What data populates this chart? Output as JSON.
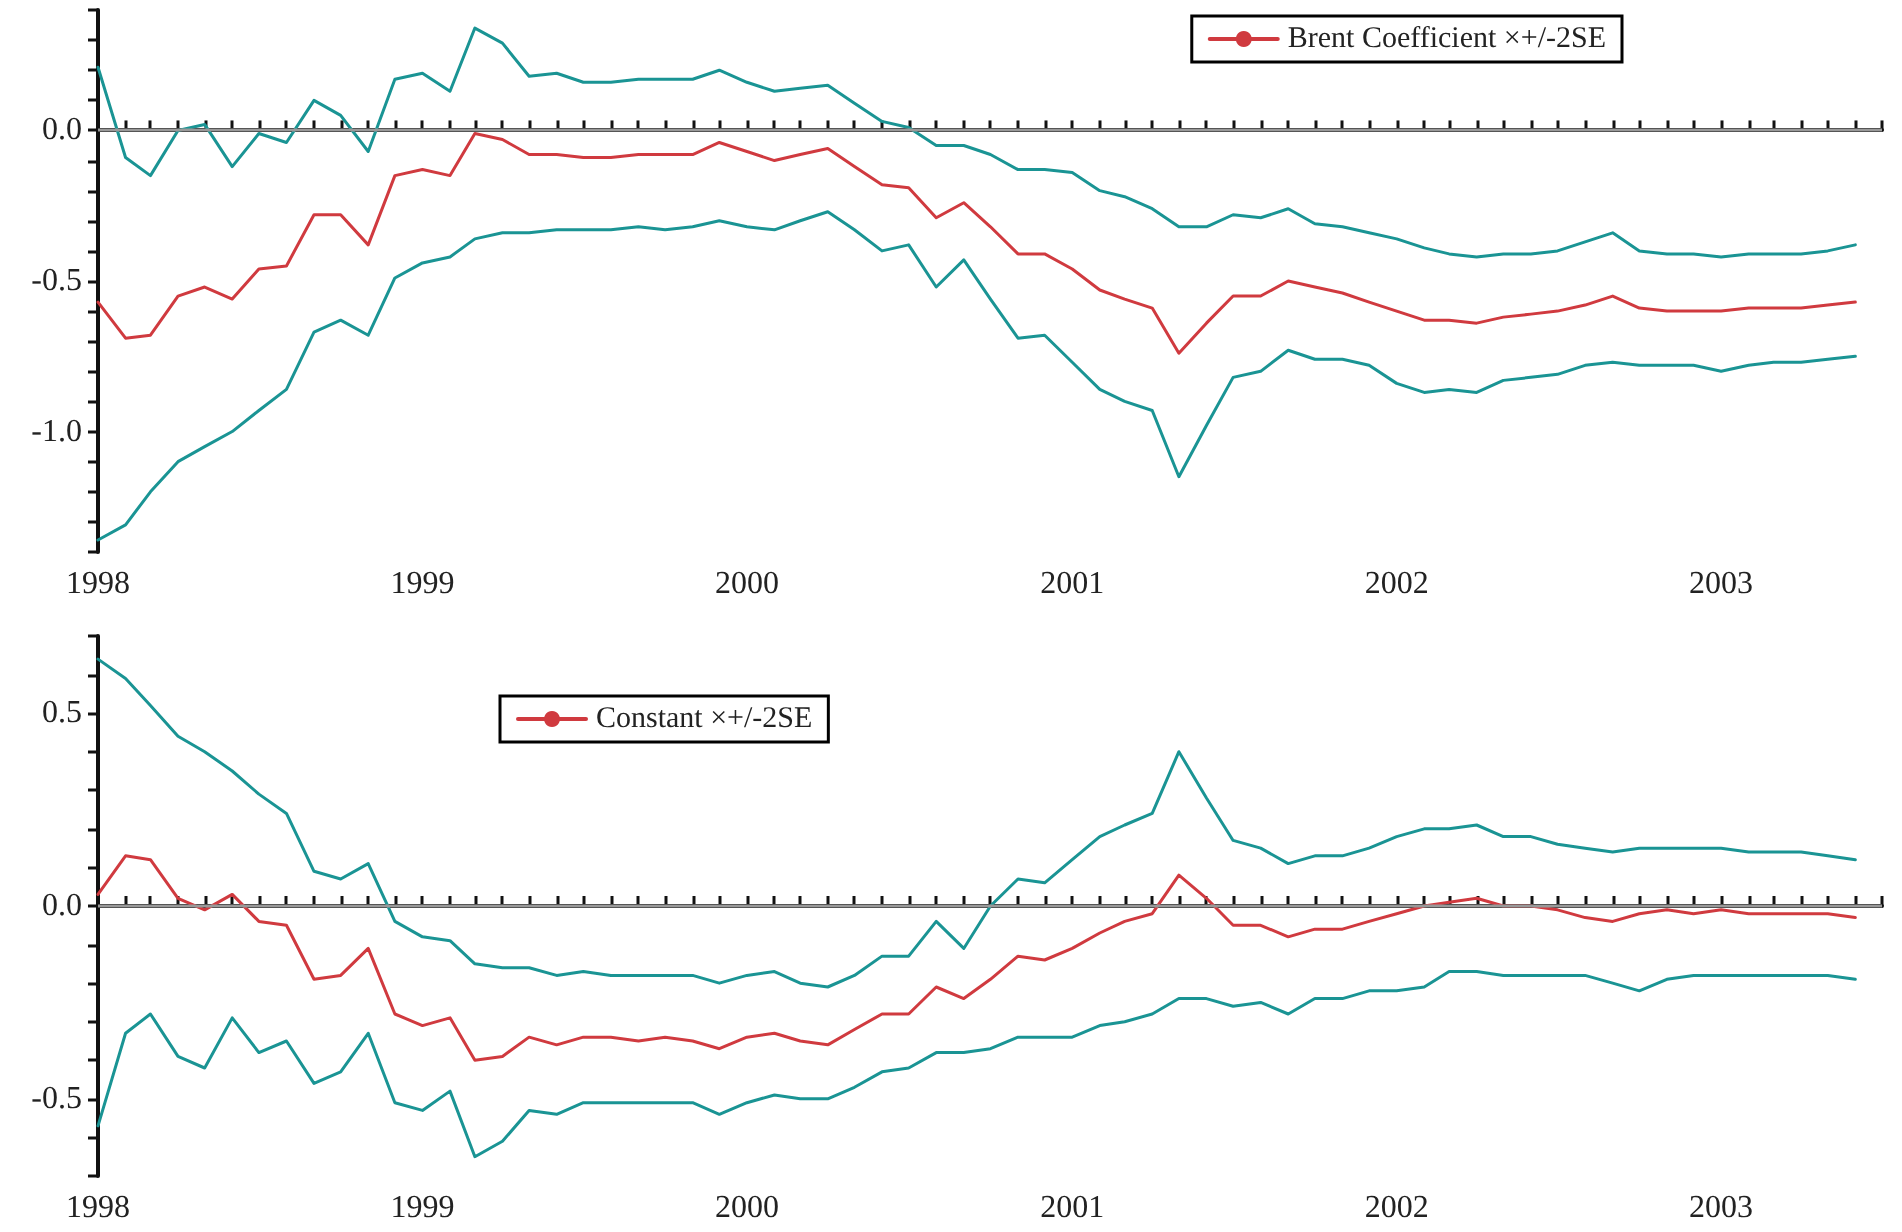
{
  "chart_data": [
    {
      "type": "line",
      "x": [
        "1998-01",
        "1998-02",
        "1998-03",
        "1998-04",
        "1998-05",
        "1998-06",
        "1998-07",
        "1998-08",
        "1998-09",
        "1998-10",
        "1998-11",
        "1998-12",
        "1999-01",
        "1999-02",
        "1999-03",
        "1999-04",
        "1999-05",
        "1999-06",
        "1999-07",
        "1999-08",
        "1999-09",
        "1999-10",
        "1999-11",
        "1999-12",
        "2000-01",
        "2000-02",
        "2000-03",
        "2000-04",
        "2000-05",
        "2000-06",
        "2000-07",
        "2000-08",
        "2000-09",
        "2000-10",
        "2000-11",
        "2000-12",
        "2001-01",
        "2001-02",
        "2001-03",
        "2001-04",
        "2001-05",
        "2001-06",
        "2001-07",
        "2001-08",
        "2001-09",
        "2001-10",
        "2001-11",
        "2001-12",
        "2002-01",
        "2002-02",
        "2002-03",
        "2002-04",
        "2002-05",
        "2002-06",
        "2002-07",
        "2002-08",
        "2002-09",
        "2002-10",
        "2002-11",
        "2002-12",
        "2003-01",
        "2003-02",
        "2003-03",
        "2003-04",
        "2003-05",
        "2003-06"
      ],
      "series": [
        {
          "name": "Brent Coefficient ×+/-2SE",
          "color": "#d03a3f",
          "values": [
            -0.57,
            -0.69,
            -0.68,
            -0.55,
            -0.52,
            -0.56,
            -0.46,
            -0.45,
            -0.28,
            -0.28,
            -0.38,
            -0.15,
            -0.13,
            -0.15,
            -0.01,
            -0.03,
            -0.08,
            -0.08,
            -0.09,
            -0.09,
            -0.08,
            -0.08,
            -0.08,
            -0.04,
            -0.07,
            -0.1,
            -0.08,
            -0.06,
            -0.12,
            -0.18,
            -0.19,
            -0.29,
            -0.24,
            -0.32,
            -0.41,
            -0.41,
            -0.46,
            -0.53,
            -0.56,
            -0.59,
            -0.74,
            -0.64,
            -0.55,
            -0.55,
            -0.5,
            -0.52,
            -0.54,
            -0.57,
            -0.6,
            -0.63,
            -0.63,
            -0.64,
            -0.62,
            -0.61,
            -0.6,
            -0.58,
            -0.55,
            -0.59,
            -0.6,
            -0.6,
            -0.6,
            -0.59,
            -0.59,
            -0.59,
            -0.58,
            -0.57
          ]
        },
        {
          "color": "#1a9494",
          "values": [
            0.21,
            -0.09,
            -0.15,
            0.0,
            0.02,
            -0.12,
            -0.01,
            -0.04,
            0.1,
            0.05,
            -0.07,
            0.17,
            0.19,
            0.13,
            0.34,
            0.29,
            0.18,
            0.19,
            0.16,
            0.16,
            0.17,
            0.17,
            0.17,
            0.2,
            0.16,
            0.13,
            0.14,
            0.15,
            0.09,
            0.03,
            0.01,
            -0.05,
            -0.05,
            -0.08,
            -0.13,
            -0.13,
            -0.14,
            -0.2,
            -0.22,
            -0.26,
            -0.32,
            -0.32,
            -0.28,
            -0.29,
            -0.26,
            -0.31,
            -0.32,
            -0.34,
            -0.36,
            -0.39,
            -0.41,
            -0.42,
            -0.41,
            -0.41,
            -0.4,
            -0.37,
            -0.34,
            -0.4,
            -0.41,
            -0.41,
            -0.42,
            -0.41,
            -0.41,
            -0.41,
            -0.4,
            -0.38
          ]
        },
        {
          "color": "#1a9494",
          "values": [
            -1.36,
            -1.31,
            -1.2,
            -1.1,
            -1.05,
            -1.0,
            -0.93,
            -0.86,
            -0.67,
            -0.63,
            -0.68,
            -0.49,
            -0.44,
            -0.42,
            -0.36,
            -0.34,
            -0.34,
            -0.33,
            -0.33,
            -0.33,
            -0.32,
            -0.33,
            -0.32,
            -0.3,
            -0.32,
            -0.33,
            -0.3,
            -0.27,
            -0.33,
            -0.4,
            -0.38,
            -0.52,
            -0.43,
            -0.56,
            -0.69,
            -0.68,
            -0.77,
            -0.86,
            -0.9,
            -0.93,
            -1.15,
            -0.98,
            -0.82,
            -0.8,
            -0.73,
            -0.76,
            -0.76,
            -0.78,
            -0.84,
            -0.87,
            -0.86,
            -0.87,
            -0.83,
            -0.82,
            -0.81,
            -0.78,
            -0.77,
            -0.78,
            -0.78,
            -0.78,
            -0.8,
            -0.78,
            -0.77,
            -0.77,
            -0.76,
            -0.75
          ]
        }
      ],
      "xlim": [
        "1998-01",
        "2003-07"
      ],
      "xticks": [
        "1998",
        "1999",
        "2000",
        "2001",
        "2002",
        "2003"
      ],
      "ylim": [
        -1.4,
        0.4
      ],
      "yticks": [
        {
          "value": -1,
          "label": "-1.0"
        },
        {
          "value": -0.5,
          "label": "-0.5"
        },
        {
          "value": 0,
          "label": "0.0"
        }
      ],
      "ref_lines": [
        {
          "axis": "y",
          "value": 0,
          "color": "#999999"
        }
      ],
      "legend": "top right",
      "grid": false,
      "marker": "none",
      "line_style": "solid"
    },
    {
      "type": "line",
      "x": [
        "1998-01",
        "1998-02",
        "1998-03",
        "1998-04",
        "1998-05",
        "1998-06",
        "1998-07",
        "1998-08",
        "1998-09",
        "1998-10",
        "1998-11",
        "1998-12",
        "1999-01",
        "1999-02",
        "1999-03",
        "1999-04",
        "1999-05",
        "1999-06",
        "1999-07",
        "1999-08",
        "1999-09",
        "1999-10",
        "1999-11",
        "1999-12",
        "2000-01",
        "2000-02",
        "2000-03",
        "2000-04",
        "2000-05",
        "2000-06",
        "2000-07",
        "2000-08",
        "2000-09",
        "2000-10",
        "2000-11",
        "2000-12",
        "2001-01",
        "2001-02",
        "2001-03",
        "2001-04",
        "2001-05",
        "2001-06",
        "2001-07",
        "2001-08",
        "2001-09",
        "2001-10",
        "2001-11",
        "2001-12",
        "2002-01",
        "2002-02",
        "2002-03",
        "2002-04",
        "2002-05",
        "2002-06",
        "2002-07",
        "2002-08",
        "2002-09",
        "2002-10",
        "2002-11",
        "2002-12",
        "2003-01",
        "2003-02",
        "2003-03",
        "2003-04",
        "2003-05",
        "2003-06"
      ],
      "series": [
        {
          "name": "Constant ×+/-2SE",
          "color": "#d03a3f",
          "values": [
            0.03,
            0.13,
            0.12,
            0.02,
            -0.01,
            0.03,
            -0.04,
            -0.05,
            -0.19,
            -0.18,
            -0.11,
            -0.28,
            -0.31,
            -0.29,
            -0.4,
            -0.39,
            -0.34,
            -0.36,
            -0.34,
            -0.34,
            -0.35,
            -0.34,
            -0.35,
            -0.37,
            -0.34,
            -0.33,
            -0.35,
            -0.36,
            -0.32,
            -0.28,
            -0.28,
            -0.21,
            -0.24,
            -0.19,
            -0.13,
            -0.14,
            -0.11,
            -0.07,
            -0.04,
            -0.02,
            0.08,
            0.02,
            -0.05,
            -0.05,
            -0.08,
            -0.06,
            -0.06,
            -0.04,
            -0.02,
            0.0,
            0.01,
            0.02,
            0.0,
            0.0,
            -0.01,
            -0.03,
            -0.04,
            -0.02,
            -0.01,
            -0.02,
            -0.01,
            -0.02,
            -0.02,
            -0.02,
            -0.02,
            -0.03
          ]
        },
        {
          "color": "#1a9494",
          "values": [
            0.64,
            0.59,
            0.52,
            0.44,
            0.4,
            0.35,
            0.29,
            0.24,
            0.09,
            0.07,
            0.11,
            -0.04,
            -0.08,
            -0.09,
            -0.15,
            -0.16,
            -0.16,
            -0.18,
            -0.17,
            -0.18,
            -0.18,
            -0.18,
            -0.18,
            -0.2,
            -0.18,
            -0.17,
            -0.2,
            -0.21,
            -0.18,
            -0.13,
            -0.13,
            -0.04,
            -0.11,
            0.0,
            0.07,
            0.06,
            0.12,
            0.18,
            0.21,
            0.24,
            0.4,
            0.28,
            0.17,
            0.15,
            0.11,
            0.13,
            0.13,
            0.15,
            0.18,
            0.2,
            0.2,
            0.21,
            0.18,
            0.18,
            0.16,
            0.15,
            0.14,
            0.15,
            0.15,
            0.15,
            0.15,
            0.14,
            0.14,
            0.14,
            0.13,
            0.12
          ]
        },
        {
          "color": "#1a9494",
          "values": [
            -0.57,
            -0.33,
            -0.28,
            -0.39,
            -0.42,
            -0.29,
            -0.38,
            -0.35,
            -0.46,
            -0.43,
            -0.33,
            -0.51,
            -0.53,
            -0.48,
            -0.65,
            -0.61,
            -0.53,
            -0.54,
            -0.51,
            -0.51,
            -0.51,
            -0.51,
            -0.51,
            -0.54,
            -0.51,
            -0.49,
            -0.5,
            -0.5,
            -0.47,
            -0.43,
            -0.42,
            -0.38,
            -0.38,
            -0.37,
            -0.34,
            -0.34,
            -0.34,
            -0.31,
            -0.3,
            -0.28,
            -0.24,
            -0.24,
            -0.26,
            -0.25,
            -0.28,
            -0.24,
            -0.24,
            -0.22,
            -0.22,
            -0.21,
            -0.17,
            -0.17,
            -0.18,
            -0.18,
            -0.18,
            -0.18,
            -0.2,
            -0.22,
            -0.19,
            -0.18,
            -0.18,
            -0.18,
            -0.18,
            -0.18,
            -0.18,
            -0.19
          ]
        }
      ],
      "xlim": [
        "1998-01",
        "2003-07"
      ],
      "xticks": [
        "1998",
        "1999",
        "2000",
        "2001",
        "2002",
        "2003"
      ],
      "ylim": [
        -0.7,
        0.7
      ],
      "yticks": [
        {
          "value": -0.5,
          "label": "-0.5"
        },
        {
          "value": 0,
          "label": "0.0"
        },
        {
          "value": 0.5,
          "label": "0.5"
        }
      ],
      "ref_lines": [
        {
          "axis": "y",
          "value": 0,
          "color": "#999999"
        }
      ],
      "legend": "top left",
      "grid": false,
      "marker": "none",
      "line_style": "solid"
    }
  ]
}
